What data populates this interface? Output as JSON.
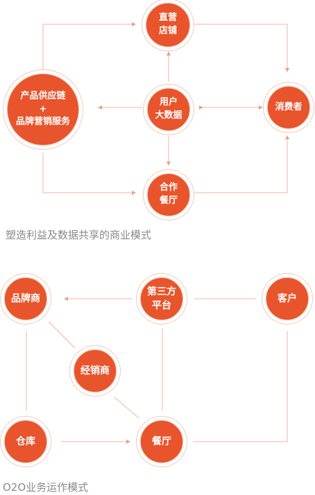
{
  "diagram1": {
    "nodes": {
      "direct_store": [
        "直营",
        "店铺"
      ],
      "brand_services": [
        "产品供应链",
        "+",
        "品牌营销服务"
      ],
      "user_big_data": [
        "用户",
        "大数据"
      ],
      "consumer": [
        "消费者"
      ],
      "partner_restaurant": [
        "合作",
        "餐厅"
      ]
    },
    "caption": "塑造利益及数据共享的商业模式"
  },
  "diagram2": {
    "nodes": {
      "brand": [
        "品牌商"
      ],
      "third_party_platform": [
        "第三方",
        "平台"
      ],
      "customer": [
        "客户"
      ],
      "distributor": [
        "经销商"
      ],
      "warehouse": [
        "仓库"
      ],
      "restaurant": [
        "餐厅"
      ]
    },
    "caption": "O2O业务运作模式"
  },
  "colors": {
    "node_fill": "#e8542b",
    "line": "#f3b39c",
    "caption": "#8a8a8a"
  }
}
